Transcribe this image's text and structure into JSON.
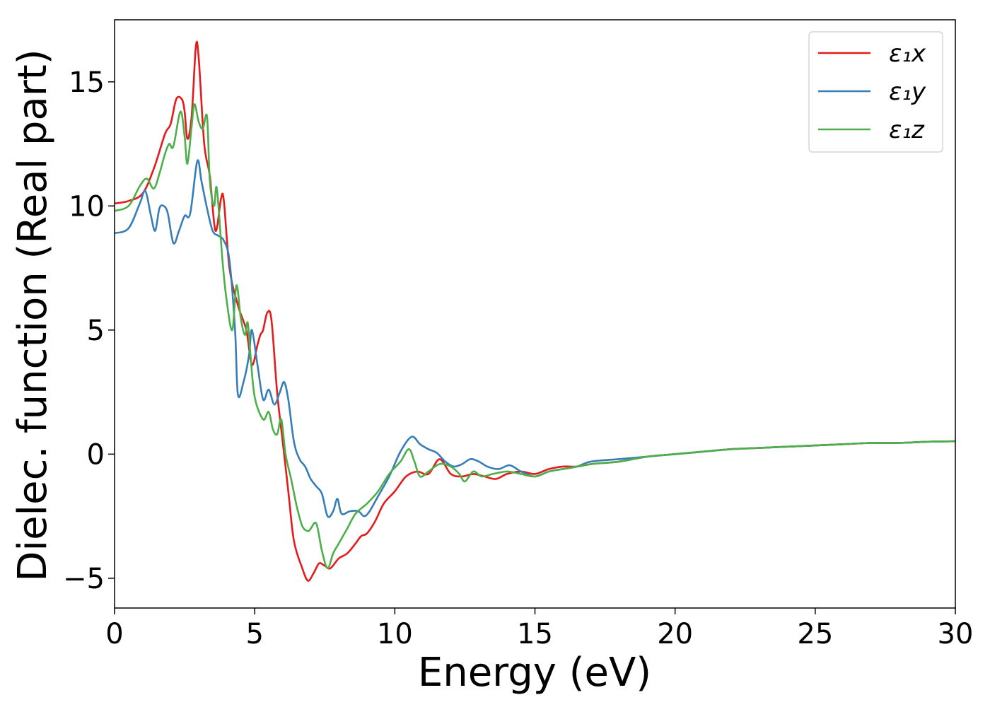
{
  "chart_data": {
    "type": "line",
    "xlabel": "Energy (eV)",
    "ylabel": "Dielec. function (Real part)",
    "xlim": [
      0,
      30
    ],
    "ylim": [
      -6.2,
      17.5
    ],
    "xticks": [
      0,
      5,
      10,
      15,
      20,
      25,
      30
    ],
    "xtick_labels": [
      "0",
      "5",
      "10",
      "15",
      "20",
      "25",
      "30"
    ],
    "yticks": [
      -5,
      0,
      5,
      10,
      15
    ],
    "ytick_labels": [
      "−5",
      "0",
      "5",
      "10",
      "15"
    ],
    "grid": false,
    "legend_position": "top-right",
    "series": [
      {
        "name": "ε₁x",
        "color": "#e41a1c",
        "points": [
          [
            0,
            10.1
          ],
          [
            0.5,
            10.2
          ],
          [
            1.0,
            10.5
          ],
          [
            1.4,
            11.5
          ],
          [
            1.8,
            12.9
          ],
          [
            2.0,
            13.3
          ],
          [
            2.2,
            14.3
          ],
          [
            2.4,
            14.3
          ],
          [
            2.5,
            13.8
          ],
          [
            2.6,
            12.7
          ],
          [
            2.75,
            13.6
          ],
          [
            2.9,
            16.4
          ],
          [
            3.0,
            16.0
          ],
          [
            3.2,
            12.5
          ],
          [
            3.4,
            11.2
          ],
          [
            3.6,
            9.0
          ],
          [
            3.8,
            10.3
          ],
          [
            3.9,
            10.2
          ],
          [
            4.1,
            7.5
          ],
          [
            4.4,
            6.0
          ],
          [
            4.7,
            5.0
          ],
          [
            4.9,
            3.6
          ],
          [
            5.1,
            4.4
          ],
          [
            5.2,
            4.8
          ],
          [
            5.3,
            5.0
          ],
          [
            5.45,
            5.7
          ],
          [
            5.6,
            5.4
          ],
          [
            5.8,
            2.5
          ],
          [
            6.0,
            0.5
          ],
          [
            6.2,
            -1.5
          ],
          [
            6.4,
            -3.5
          ],
          [
            6.7,
            -4.6
          ],
          [
            6.9,
            -5.1
          ],
          [
            7.1,
            -4.8
          ],
          [
            7.3,
            -4.4
          ],
          [
            7.5,
            -4.5
          ],
          [
            7.7,
            -4.6
          ],
          [
            8.0,
            -4.2
          ],
          [
            8.3,
            -4.0
          ],
          [
            8.6,
            -3.6
          ],
          [
            8.8,
            -3.3
          ],
          [
            9.0,
            -3.2
          ],
          [
            9.3,
            -2.7
          ],
          [
            9.6,
            -2.0
          ],
          [
            10.0,
            -1.5
          ],
          [
            10.4,
            -0.9
          ],
          [
            10.8,
            -0.7
          ],
          [
            11.2,
            -0.8
          ],
          [
            11.6,
            -0.2
          ],
          [
            12.0,
            -0.8
          ],
          [
            12.4,
            -0.9
          ],
          [
            12.8,
            -0.8
          ],
          [
            13.2,
            -0.9
          ],
          [
            13.6,
            -1.0
          ],
          [
            14.0,
            -0.8
          ],
          [
            14.5,
            -0.7
          ],
          [
            15.0,
            -0.8
          ],
          [
            15.5,
            -0.6
          ],
          [
            16,
            -0.5
          ],
          [
            16.5,
            -0.5
          ],
          [
            17,
            -0.4
          ],
          [
            18,
            -0.3
          ],
          [
            19,
            -0.1
          ],
          [
            20,
            0.0
          ],
          [
            21,
            0.1
          ],
          [
            22,
            0.2
          ],
          [
            23,
            0.25
          ],
          [
            24,
            0.3
          ],
          [
            25,
            0.35
          ],
          [
            26,
            0.4
          ],
          [
            27,
            0.45
          ],
          [
            28,
            0.45
          ],
          [
            29,
            0.5
          ],
          [
            30,
            0.52
          ]
        ]
      },
      {
        "name": "ε₁y",
        "color": "#377eb8",
        "points": [
          [
            0,
            8.9
          ],
          [
            0.5,
            9.1
          ],
          [
            0.9,
            10.1
          ],
          [
            1.1,
            10.6
          ],
          [
            1.3,
            9.6
          ],
          [
            1.45,
            9.0
          ],
          [
            1.6,
            9.9
          ],
          [
            1.75,
            10.0
          ],
          [
            1.9,
            9.7
          ],
          [
            2.1,
            8.5
          ],
          [
            2.3,
            9.0
          ],
          [
            2.5,
            9.6
          ],
          [
            2.7,
            9.7
          ],
          [
            2.95,
            11.8
          ],
          [
            3.1,
            11.0
          ],
          [
            3.3,
            9.9
          ],
          [
            3.5,
            9.0
          ],
          [
            3.7,
            8.8
          ],
          [
            3.9,
            8.6
          ],
          [
            4.1,
            7.8
          ],
          [
            4.3,
            5.0
          ],
          [
            4.4,
            2.4
          ],
          [
            4.6,
            2.9
          ],
          [
            4.8,
            4.0
          ],
          [
            4.9,
            5.0
          ],
          [
            5.1,
            3.6
          ],
          [
            5.3,
            2.2
          ],
          [
            5.5,
            2.6
          ],
          [
            5.7,
            2.0
          ],
          [
            5.9,
            2.5
          ],
          [
            6.05,
            2.9
          ],
          [
            6.2,
            2.2
          ],
          [
            6.4,
            0.5
          ],
          [
            6.6,
            -0.2
          ],
          [
            6.8,
            -0.5
          ],
          [
            7.0,
            -1.0
          ],
          [
            7.2,
            -1.3
          ],
          [
            7.4,
            -1.6
          ],
          [
            7.6,
            -2.5
          ],
          [
            7.8,
            -2.3
          ],
          [
            7.95,
            -1.8
          ],
          [
            8.1,
            -2.4
          ],
          [
            8.4,
            -2.3
          ],
          [
            8.7,
            -2.3
          ],
          [
            8.9,
            -2.5
          ],
          [
            9.1,
            -2.3
          ],
          [
            9.4,
            -1.7
          ],
          [
            9.8,
            -0.9
          ],
          [
            10.2,
            0.1
          ],
          [
            10.6,
            0.7
          ],
          [
            10.9,
            0.4
          ],
          [
            11.2,
            0.2
          ],
          [
            11.5,
            0.05
          ],
          [
            11.8,
            -0.3
          ],
          [
            12.1,
            -0.5
          ],
          [
            12.4,
            -0.4
          ],
          [
            12.7,
            -0.2
          ],
          [
            13.0,
            -0.3
          ],
          [
            13.3,
            -0.5
          ],
          [
            13.7,
            -0.6
          ],
          [
            14.1,
            -0.45
          ],
          [
            14.5,
            -0.7
          ],
          [
            15.0,
            -0.9
          ],
          [
            15.5,
            -0.7
          ],
          [
            16,
            -0.6
          ],
          [
            16.5,
            -0.5
          ],
          [
            17,
            -0.3
          ],
          [
            18,
            -0.2
          ],
          [
            19,
            -0.1
          ],
          [
            20,
            0.0
          ],
          [
            21,
            0.1
          ],
          [
            22,
            0.2
          ],
          [
            23,
            0.25
          ],
          [
            24,
            0.3
          ],
          [
            25,
            0.35
          ],
          [
            26,
            0.4
          ],
          [
            27,
            0.45
          ],
          [
            28,
            0.45
          ],
          [
            29,
            0.5
          ],
          [
            30,
            0.52
          ]
        ]
      },
      {
        "name": "ε₁z",
        "color": "#4daf4a",
        "points": [
          [
            0,
            9.8
          ],
          [
            0.5,
            10.0
          ],
          [
            0.9,
            10.8
          ],
          [
            1.15,
            11.1
          ],
          [
            1.4,
            10.7
          ],
          [
            1.6,
            11.3
          ],
          [
            1.8,
            12.1
          ],
          [
            1.95,
            12.5
          ],
          [
            2.1,
            12.4
          ],
          [
            2.35,
            13.8
          ],
          [
            2.5,
            12.8
          ],
          [
            2.6,
            11.7
          ],
          [
            2.75,
            13.2
          ],
          [
            2.85,
            14.1
          ],
          [
            3.0,
            13.4
          ],
          [
            3.15,
            13.1
          ],
          [
            3.3,
            13.6
          ],
          [
            3.4,
            11.0
          ],
          [
            3.55,
            10.0
          ],
          [
            3.65,
            10.7
          ],
          [
            3.85,
            7.8
          ],
          [
            4.0,
            6.2
          ],
          [
            4.2,
            5.0
          ],
          [
            4.35,
            6.8
          ],
          [
            4.5,
            5.5
          ],
          [
            4.65,
            4.8
          ],
          [
            4.75,
            5.3
          ],
          [
            4.85,
            4.0
          ],
          [
            5.0,
            2.3
          ],
          [
            5.3,
            1.4
          ],
          [
            5.5,
            1.7
          ],
          [
            5.65,
            1.0
          ],
          [
            5.8,
            0.8
          ],
          [
            5.95,
            1.4
          ],
          [
            6.1,
            0.0
          ],
          [
            6.3,
            -1.0
          ],
          [
            6.5,
            -2.1
          ],
          [
            6.7,
            -2.9
          ],
          [
            6.9,
            -3.1
          ],
          [
            7.0,
            -3.0
          ],
          [
            7.2,
            -2.8
          ],
          [
            7.4,
            -3.9
          ],
          [
            7.6,
            -4.6
          ],
          [
            7.8,
            -4.0
          ],
          [
            8.0,
            -3.6
          ],
          [
            8.3,
            -3.0
          ],
          [
            8.6,
            -2.4
          ],
          [
            9.0,
            -2.0
          ],
          [
            9.4,
            -1.5
          ],
          [
            9.8,
            -0.8
          ],
          [
            10.2,
            -0.3
          ],
          [
            10.5,
            0.2
          ],
          [
            10.7,
            -0.3
          ],
          [
            10.9,
            -0.9
          ],
          [
            11.2,
            -0.7
          ],
          [
            11.6,
            -0.4
          ],
          [
            12.0,
            -0.5
          ],
          [
            12.3,
            -0.8
          ],
          [
            12.5,
            -1.1
          ],
          [
            12.8,
            -0.7
          ],
          [
            13.1,
            -0.9
          ],
          [
            13.5,
            -0.8
          ],
          [
            14.0,
            -0.7
          ],
          [
            14.5,
            -0.8
          ],
          [
            15.0,
            -0.9
          ],
          [
            15.5,
            -0.7
          ],
          [
            16,
            -0.6
          ],
          [
            16.5,
            -0.5
          ],
          [
            17,
            -0.4
          ],
          [
            18,
            -0.3
          ],
          [
            19,
            -0.1
          ],
          [
            20,
            0.0
          ],
          [
            21,
            0.1
          ],
          [
            22,
            0.2
          ],
          [
            23,
            0.25
          ],
          [
            24,
            0.3
          ],
          [
            25,
            0.35
          ],
          [
            26,
            0.4
          ],
          [
            27,
            0.45
          ],
          [
            28,
            0.45
          ],
          [
            29,
            0.5
          ],
          [
            30,
            0.52
          ]
        ]
      }
    ]
  }
}
